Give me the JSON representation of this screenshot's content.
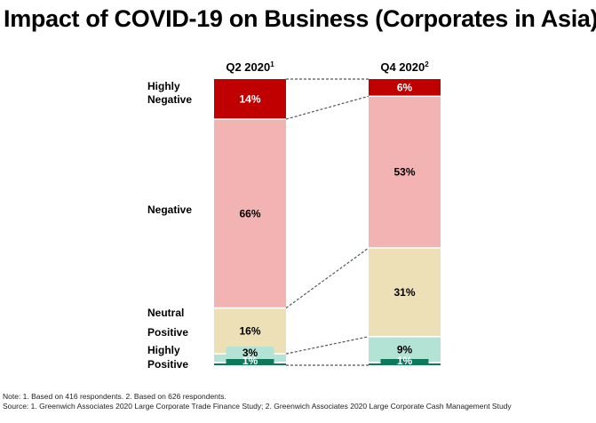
{
  "title": "Impact of COVID-19 on Business (Corporates in Asia)",
  "notes": {
    "note": "Note: 1. Based on 416 respondents. 2. Based on 626 respondents.",
    "source": "Source: 1. Greenwich Associates 2020 Large Corporate Trade Finance Study; 2. Greenwich Associates 2020 Large Corporate Cash Management Study"
  },
  "chart_data": {
    "type": "bar",
    "stacked": true,
    "orientation": "vertical",
    "title": "Impact of COVID-19 on Business (Corporates in Asia)",
    "categories": [
      "Q2 2020",
      "Q4 2020"
    ],
    "category_superscripts": [
      "1",
      "2"
    ],
    "series": [
      {
        "name": "Highly Negative",
        "values": [
          14,
          6
        ],
        "color": "#c00000",
        "label_color": "#ffffff"
      },
      {
        "name": "Negative",
        "values": [
          66,
          53
        ],
        "color": "#f4b3b3",
        "label_color": "#000000"
      },
      {
        "name": "Neutral",
        "values": [
          16,
          31
        ],
        "color": "#ede0b6",
        "label_color": "#000000"
      },
      {
        "name": "Positive",
        "values": [
          3,
          9
        ],
        "color": "#b3e3d4",
        "label_color": "#000000"
      },
      {
        "name": "Highly Positive",
        "values": [
          1,
          1
        ],
        "color": "#0c7a5a",
        "label_color": "#ffffff"
      }
    ],
    "row_labels": [
      {
        "series": "Highly Negative",
        "text": [
          "Highly",
          "Negative"
        ]
      },
      {
        "series": "Negative",
        "text": [
          "Negative"
        ]
      },
      {
        "series": "Neutral",
        "text": [
          "Neutral"
        ]
      },
      {
        "series": "Positive",
        "text": [
          "Positive"
        ]
      },
      {
        "series": "Highly Positive",
        "text": [
          "Highly",
          "Positive"
        ]
      }
    ],
    "data_label_format": "{v}%",
    "connectors": "dashed",
    "ylim": [
      0,
      100
    ],
    "grid": false,
    "legend": "left-labels"
  }
}
